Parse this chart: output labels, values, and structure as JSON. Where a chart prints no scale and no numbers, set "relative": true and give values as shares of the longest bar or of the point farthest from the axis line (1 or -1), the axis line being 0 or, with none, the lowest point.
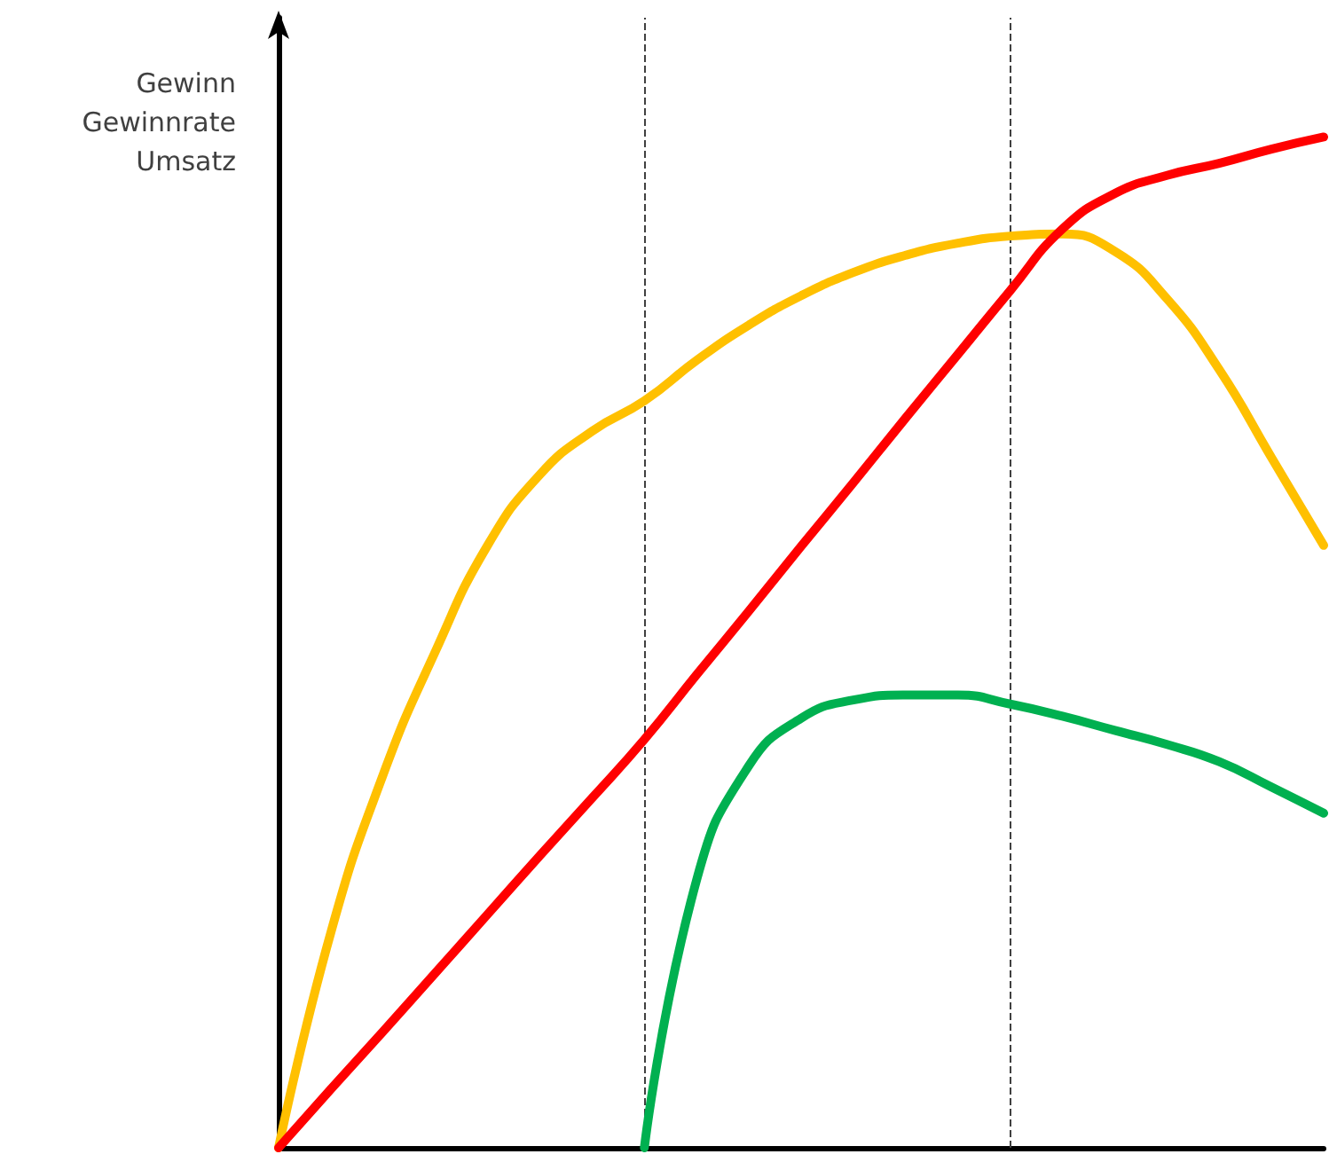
{
  "chart_data": {
    "type": "line",
    "ylabel": "Gewinn\nGewinnrate\nUmsatz",
    "relative": true,
    "categories": [
      null,
      null,
      null,
      null,
      null,
      null,
      null,
      null,
      null,
      null,
      null,
      null,
      null,
      null,
      null,
      null,
      null,
      null,
      null,
      null,
      null
    ],
    "series": [
      {
        "color": "#ffc000",
        "values": [
          0,
          0.213,
          0.369,
          0.491,
          0.596,
          0.666,
          0.709,
          0.739,
          0.779,
          0.814,
          0.843,
          0.866,
          0.883,
          0.895,
          0.902,
          0.904,
          0.887,
          0.84,
          0.77,
          0.683,
          0.596
        ]
      },
      {
        "color": "#ff0000",
        "values": [
          0,
          0.058,
          0.115,
          0.173,
          0.231,
          0.289,
          0.346,
          0.404,
          0.468,
          0.531,
          0.595,
          0.658,
          0.722,
          0.785,
          0.848,
          0.909,
          0.944,
          0.962,
          0.974,
          0.988,
          1.0
        ]
      },
      {
        "color": "#00b050",
        "values": [
          null,
          null,
          null,
          null,
          null,
          null,
          null,
          0,
          0.265,
          0.378,
          0.425,
          0.443,
          0.448,
          0.448,
          0.439,
          0.427,
          0.413,
          0.399,
          0.382,
          0.357,
          0.331
        ]
      }
    ],
    "grid": false,
    "marker": "none"
  }
}
